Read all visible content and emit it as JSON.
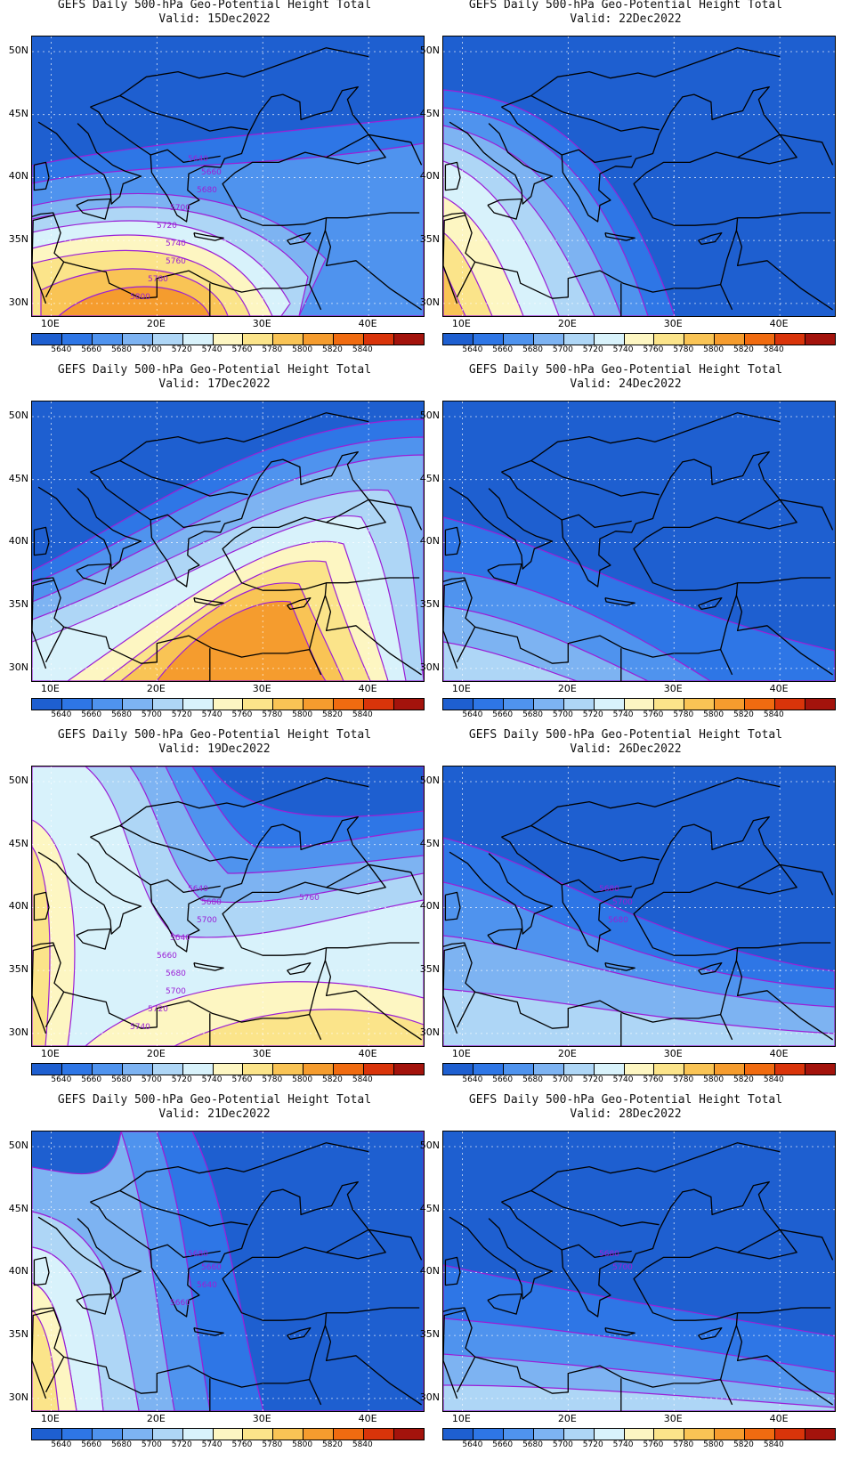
{
  "title_prefix": "GEFS Daily 500-hPa Geo-Potential Height Total",
  "colorbar": {
    "colors": [
      "#1e5fd0",
      "#2e76e6",
      "#4f93ee",
      "#7db3f2",
      "#aed6f6",
      "#d8f2fb",
      "#fdf6c2",
      "#fbe48a",
      "#f9c455",
      "#f59c2e",
      "#f06b10",
      "#d9340a",
      "#a3130c"
    ],
    "labels": [
      "5640",
      "5660",
      "5680",
      "5700",
      "5720",
      "5740",
      "5760",
      "5780",
      "5800",
      "5820",
      "5840"
    ]
  },
  "axes": {
    "lat_labels": [
      "50N",
      "45N",
      "40N",
      "35N",
      "30N"
    ],
    "lon_labels": [
      "10E",
      "20E",
      "30E",
      "40E"
    ]
  },
  "panels": [
    {
      "title": "GEFS Daily 500-hPa Geo-Potential Height Total",
      "valid": "Valid: 15Dec2022",
      "contour_labels": [
        "5640",
        "5660",
        "5680",
        "5700",
        "5720",
        "5740",
        "5760",
        "5780",
        "5800"
      ],
      "pattern": "south-ridge"
    },
    {
      "title": "GEFS Daily 500-hPa Geo-Potential Height Total",
      "valid": "Valid: 22Dec2022",
      "contour_labels": [],
      "pattern": "west-ridge-small"
    },
    {
      "title": "GEFS Daily 500-hPa Geo-Potential Height Total",
      "valid": "Valid: 17Dec2022",
      "contour_labels": [],
      "pattern": "big-ridge"
    },
    {
      "title": "GEFS Daily 500-hPa Geo-Potential Height Total",
      "valid": "Valid: 24Dec2022",
      "contour_labels": [],
      "pattern": "trough-sw"
    },
    {
      "title": "GEFS Daily 500-hPa Geo-Potential Height Total",
      "valid": "Valid: 19Dec2022",
      "contour_labels": [
        "5640",
        "5680",
        "5700",
        "5640",
        "5660",
        "5680",
        "5700",
        "5720",
        "5740",
        "5760"
      ],
      "pattern": "cutoff"
    },
    {
      "title": "GEFS Daily 500-hPa Geo-Potential Height Total",
      "valid": "Valid: 26Dec2022",
      "contour_labels": [
        "5680",
        "5700",
        "5680"
      ],
      "pattern": "trough-s"
    },
    {
      "title": "GEFS Daily 500-hPa Geo-Potential Height Total",
      "valid": "Valid: 21Dec2022",
      "contour_labels": [
        "5680",
        "5660",
        "5640",
        "5660"
      ],
      "pattern": "west-ridge"
    },
    {
      "title": "GEFS Daily 500-hPa Geo-Potential Height Total",
      "valid": "Valid: 28Dec2022",
      "contour_labels": [
        "5680",
        "5700"
      ],
      "pattern": "trough-s2"
    }
  ]
}
